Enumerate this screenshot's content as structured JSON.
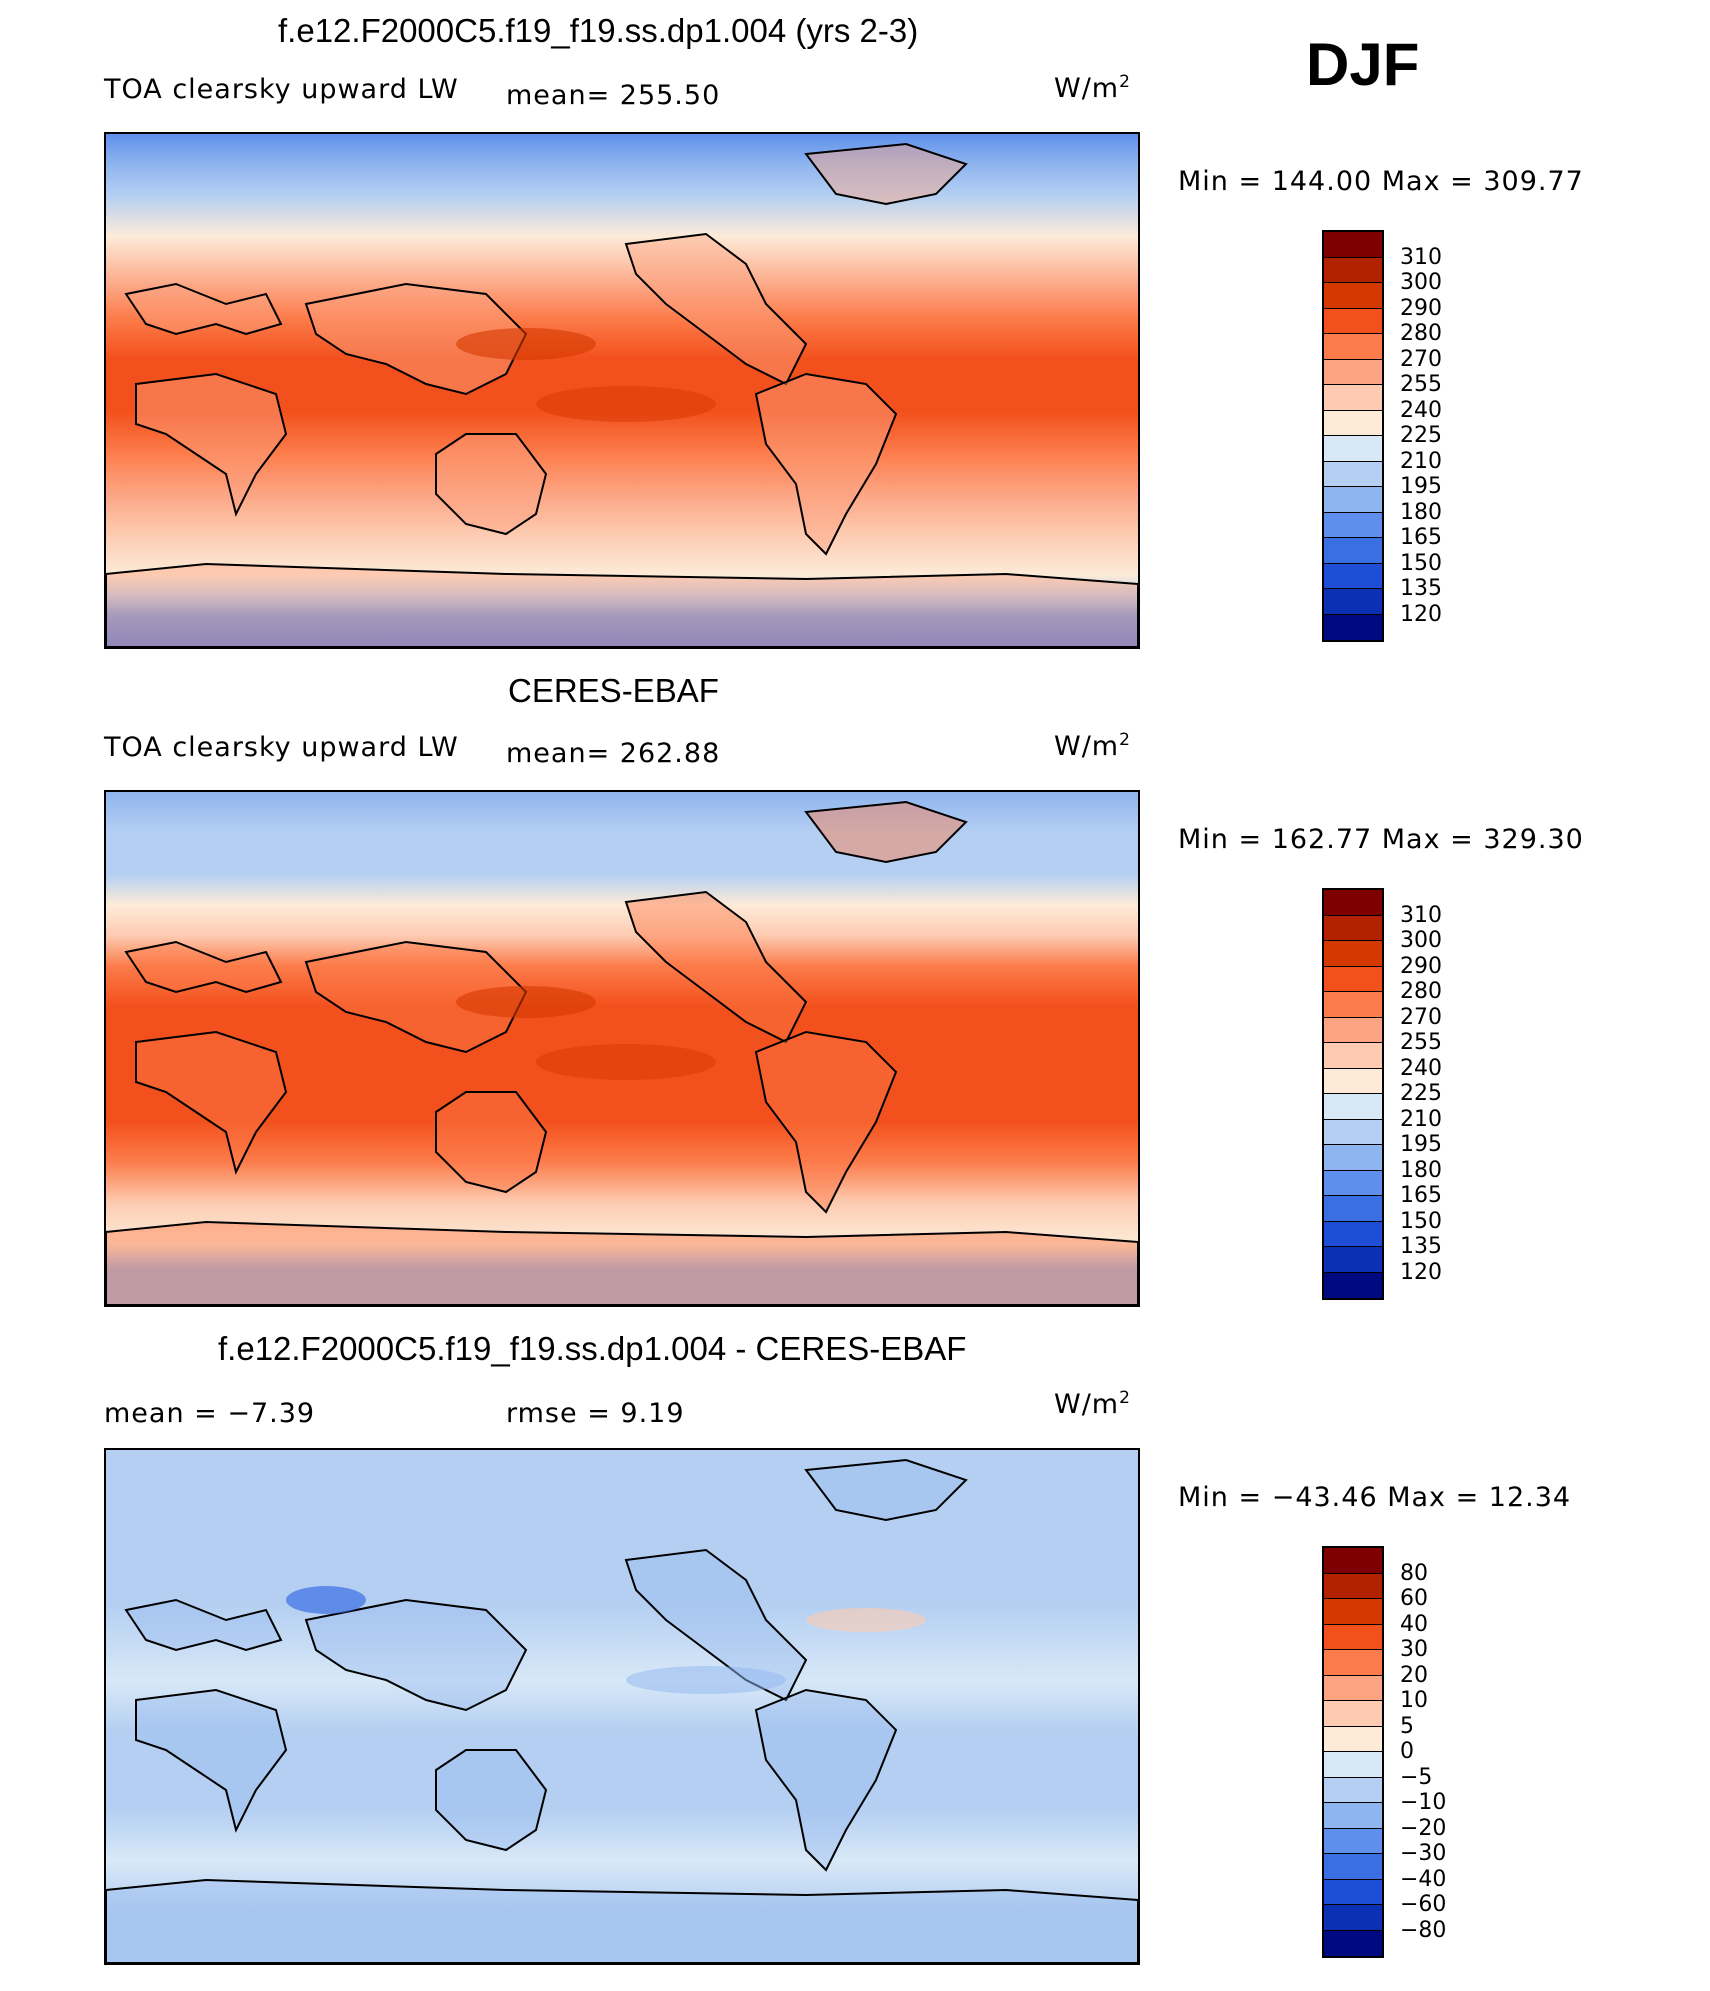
{
  "season": "DJF",
  "panels": [
    {
      "title": "f.e12.F2000C5.f19_f19.ss.dp1.004 (yrs 2-3)",
      "left_label": "TOA clearsky upward LW",
      "center_label": "mean= 255.50",
      "units": "W/m",
      "units_sup": "2",
      "minmax": "Min  =  144.00  Max  =  309.77",
      "scheme": "abs",
      "colorbar": {
        "colors": [
          "#7f0000",
          "#b22100",
          "#d53800",
          "#f2501c",
          "#fc7b4a",
          "#fca482",
          "#fdcbb1",
          "#fdebd8",
          "#d8e8f7",
          "#b4cff2",
          "#8fb5ef",
          "#5f8fec",
          "#3a6fe4",
          "#1d4ed5",
          "#0c30b3",
          "#000a80"
        ],
        "labels": [
          "310",
          "300",
          "290",
          "280",
          "270",
          "255",
          "240",
          "225",
          "210",
          "195",
          "180",
          "165",
          "150",
          "135",
          "120"
        ]
      }
    },
    {
      "title": "CERES-EBAF",
      "left_label": "TOA clearsky upward LW",
      "center_label": "mean= 262.88",
      "units": "W/m",
      "units_sup": "2",
      "minmax": "Min  =  162.77  Max  =  329.30",
      "scheme": "abs2",
      "colorbar": {
        "colors": [
          "#7f0000",
          "#b22100",
          "#d53800",
          "#f2501c",
          "#fc7b4a",
          "#fca482",
          "#fdcbb1",
          "#fdebd8",
          "#d8e8f7",
          "#b4cff2",
          "#8fb5ef",
          "#5f8fec",
          "#3a6fe4",
          "#1d4ed5",
          "#0c30b3",
          "#000a80"
        ],
        "labels": [
          "310",
          "300",
          "290",
          "280",
          "270",
          "255",
          "240",
          "225",
          "210",
          "195",
          "180",
          "165",
          "150",
          "135",
          "120"
        ]
      }
    },
    {
      "title": "f.e12.F2000C5.f19_f19.ss.dp1.004 - CERES-EBAF",
      "left_label": "mean =    −7.39",
      "center_label": "rmse =     9.19",
      "units": "W/m",
      "units_sup": "2",
      "minmax": "Min  =  −43.46  Max  =    12.34",
      "scheme": "diff",
      "colorbar": {
        "colors": [
          "#7f0000",
          "#b22100",
          "#d53800",
          "#f2501c",
          "#fc7b4a",
          "#fca482",
          "#fdcbb1",
          "#fdebd8",
          "#d8e8f7",
          "#b4cff2",
          "#8fb5ef",
          "#5f8fec",
          "#3a6fe4",
          "#1d4ed5",
          "#0c30b3",
          "#000a80"
        ],
        "labels": [
          "80",
          "60",
          "40",
          "30",
          "20",
          "10",
          "5",
          "0",
          "−5",
          "−10",
          "−20",
          "−30",
          "−40",
          "−60",
          "−80"
        ]
      }
    }
  ]
}
